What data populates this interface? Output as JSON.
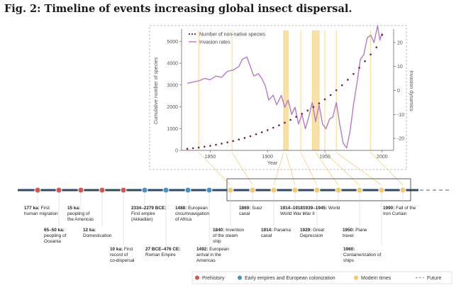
{
  "figure_title": "Fig. 2: Timeline of events increasing global insect dispersal.",
  "chart_data": [
    {
      "type": "line",
      "xlabel": "Year",
      "ylabel": "Cumulative number of species",
      "ylabel_right": "Invasion dynamics",
      "xlim": [
        1825,
        2010
      ],
      "ylim": [
        0,
        5500
      ],
      "ylim_right": [
        -25,
        25
      ],
      "x_ticks": [
        1850,
        1900,
        1950,
        2000
      ],
      "y_ticks": [
        0,
        1000,
        2000,
        3000,
        4000,
        5000
      ],
      "y_ticks_right": [
        -20,
        -10,
        0,
        10,
        20
      ],
      "grid": false,
      "legend_position": "top-left",
      "series": [
        {
          "name": "Number of non-native species",
          "style": "dotted",
          "color": "#6b1f4a",
          "x": [
            1830,
            1835,
            1840,
            1845,
            1850,
            1855,
            1860,
            1865,
            1870,
            1875,
            1880,
            1885,
            1890,
            1895,
            1900,
            1905,
            1910,
            1915,
            1920,
            1925,
            1930,
            1935,
            1940,
            1945,
            1950,
            1955,
            1960,
            1965,
            1970,
            1975,
            1980,
            1985,
            1990,
            1995,
            2000
          ],
          "values": [
            70,
            100,
            130,
            170,
            210,
            260,
            310,
            370,
            430,
            500,
            570,
            650,
            740,
            830,
            930,
            1040,
            1150,
            1270,
            1400,
            1540,
            1680,
            1830,
            1990,
            2160,
            2340,
            2540,
            2760,
            2990,
            3240,
            3510,
            3790,
            4090,
            4400,
            4730,
            5300
          ]
        },
        {
          "name": "Invasion rates",
          "style": "solid",
          "color": "#b57cc4",
          "axis": "right",
          "x": [
            1830,
            1835,
            1840,
            1845,
            1850,
            1855,
            1860,
            1865,
            1870,
            1875,
            1878,
            1882,
            1885,
            1888,
            1892,
            1895,
            1898,
            1901,
            1905,
            1908,
            1912,
            1915,
            1918,
            1921,
            1924,
            1927,
            1930,
            1933,
            1936,
            1939,
            1942,
            1945,
            1948,
            1951,
            1954,
            1957,
            1960,
            1963,
            1966,
            1969,
            1972,
            1975,
            1978,
            1981,
            1984,
            1987,
            1990,
            1993,
            1996,
            1998,
            2000
          ],
          "values": [
            3,
            3.5,
            4,
            5,
            4.5,
            6,
            5.5,
            8,
            8.5,
            10,
            13,
            14,
            10,
            6,
            7,
            5,
            2,
            -4,
            -2,
            -6,
            -2,
            -7,
            -4,
            -10,
            -7,
            -14,
            -10,
            -16,
            -11,
            -5,
            -13,
            -6,
            -14,
            -16,
            -12,
            -11,
            -5,
            -14,
            -22,
            -24,
            -17,
            -6,
            3,
            13,
            15,
            22,
            23,
            20,
            27,
            21,
            24
          ]
        }
      ],
      "highlighted_years": [
        1840,
        1869,
        1914,
        1918,
        1929,
        1939,
        1945,
        1950,
        1960,
        1990
      ]
    },
    {
      "type": "timeline",
      "legend": [
        {
          "label": "Prehistory",
          "color": "#d9534f"
        },
        {
          "label": "Early empires and European colonization",
          "color": "#4a90c4"
        },
        {
          "label": "Modern times",
          "color": "#f3c96b"
        },
        {
          "label": "Future",
          "color": "#a7adb8"
        }
      ],
      "events": [
        {
          "era": "Prehistory",
          "bold": "177 ka:",
          "text": "First human migration"
        },
        {
          "era": "Prehistory",
          "bold": "65–50 ka:",
          "text": "peopling of Oceania"
        },
        {
          "era": "Prehistory",
          "bold": "15 ka:",
          "text": "peopling of the Americas"
        },
        {
          "era": "Prehistory",
          "bold": "12 ka:",
          "text": "Domestication"
        },
        {
          "era": "Prehistory",
          "bold": "10 ka:",
          "text": "First record of co-dispersal"
        },
        {
          "era": "Early empires and European colonization",
          "bold": "2334–2279 BCE:",
          "text": "First empire (Akkadian)"
        },
        {
          "era": "Early empires and European colonization",
          "bold": "27 BCE–476 CE:",
          "text": "Roman Empire"
        },
        {
          "era": "Early empires and European colonization",
          "bold": "1488:",
          "text": "European circumna­vigation of Africa"
        },
        {
          "era": "Early empires and European colonization",
          "bold": "1492:",
          "text": "European arrival in the Americas"
        },
        {
          "era": "Modern times",
          "bold": "1840:",
          "text": "Invention of the steam ship"
        },
        {
          "era": "Modern times",
          "bold": "1869:",
          "text": "Suez canal"
        },
        {
          "era": "Modern times",
          "bold": "1914:",
          "text": "Panama canal"
        },
        {
          "era": "Modern times",
          "bold": "1914–1918:",
          "text": "World War I"
        },
        {
          "era": "Modern times",
          "bold": "1929:",
          "text": "Great Depression"
        },
        {
          "era": "Modern times",
          "bold": "1939–1945:",
          "text": "World War II"
        },
        {
          "era": "Modern times",
          "bold": "1950:",
          "text": "Plane travel"
        },
        {
          "era": "Modern times",
          "bold": "1960:",
          "text": "Containerization of ships"
        },
        {
          "era": "Modern times",
          "bold": "1990:",
          "text": "Fall of the Iron Curtain"
        }
      ]
    }
  ]
}
